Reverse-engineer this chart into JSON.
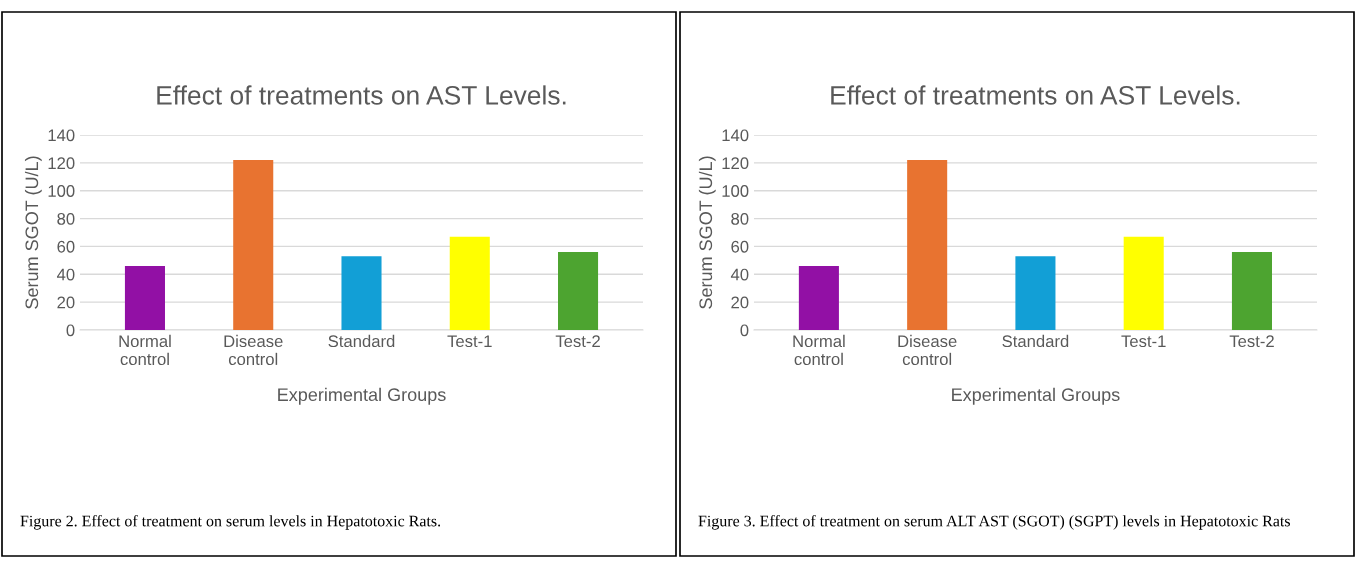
{
  "chart_data": [
    {
      "type": "bar",
      "title": "Effect of treatments on AST Levels.",
      "xlabel": "Experimental Groups",
      "ylabel": "Serum SGOT (U/L)",
      "categories": [
        "Normal\ncontrol",
        "Disease\ncontrol",
        "Standard",
        "Test-1",
        "Test-2"
      ],
      "values": [
        46,
        122,
        53,
        67,
        56
      ],
      "colors": [
        "#9210a5",
        "#e87330",
        "#129fd6",
        "#ffff00",
        "#4da430"
      ],
      "ylim": [
        0,
        140
      ],
      "yticks": [
        0,
        20,
        40,
        60,
        80,
        100,
        120,
        140
      ],
      "grid": "y",
      "annotations": [
        "Figure 2. Effect of treatment on serum levels in Hepatotoxic Rats."
      ]
    },
    {
      "type": "bar",
      "title": "Effect of treatments on AST Levels.",
      "xlabel": "Experimental Groups",
      "ylabel": "Serum SGOT (U/L)",
      "categories": [
        "Normal\ncontrol",
        "Disease\ncontrol",
        "Standard",
        "Test-1",
        "Test-2"
      ],
      "values": [
        46,
        122,
        53,
        67,
        56
      ],
      "colors": [
        "#9210a5",
        "#e87330",
        "#129fd6",
        "#ffff00",
        "#4da430"
      ],
      "ylim": [
        0,
        140
      ],
      "yticks": [
        0,
        20,
        40,
        60,
        80,
        100,
        120,
        140
      ],
      "grid": "y",
      "annotations": [
        "Figure 3. Effect of treatment on serum ALT AST (SGOT) (SGPT) levels in Hepatotoxic Rats"
      ]
    }
  ]
}
